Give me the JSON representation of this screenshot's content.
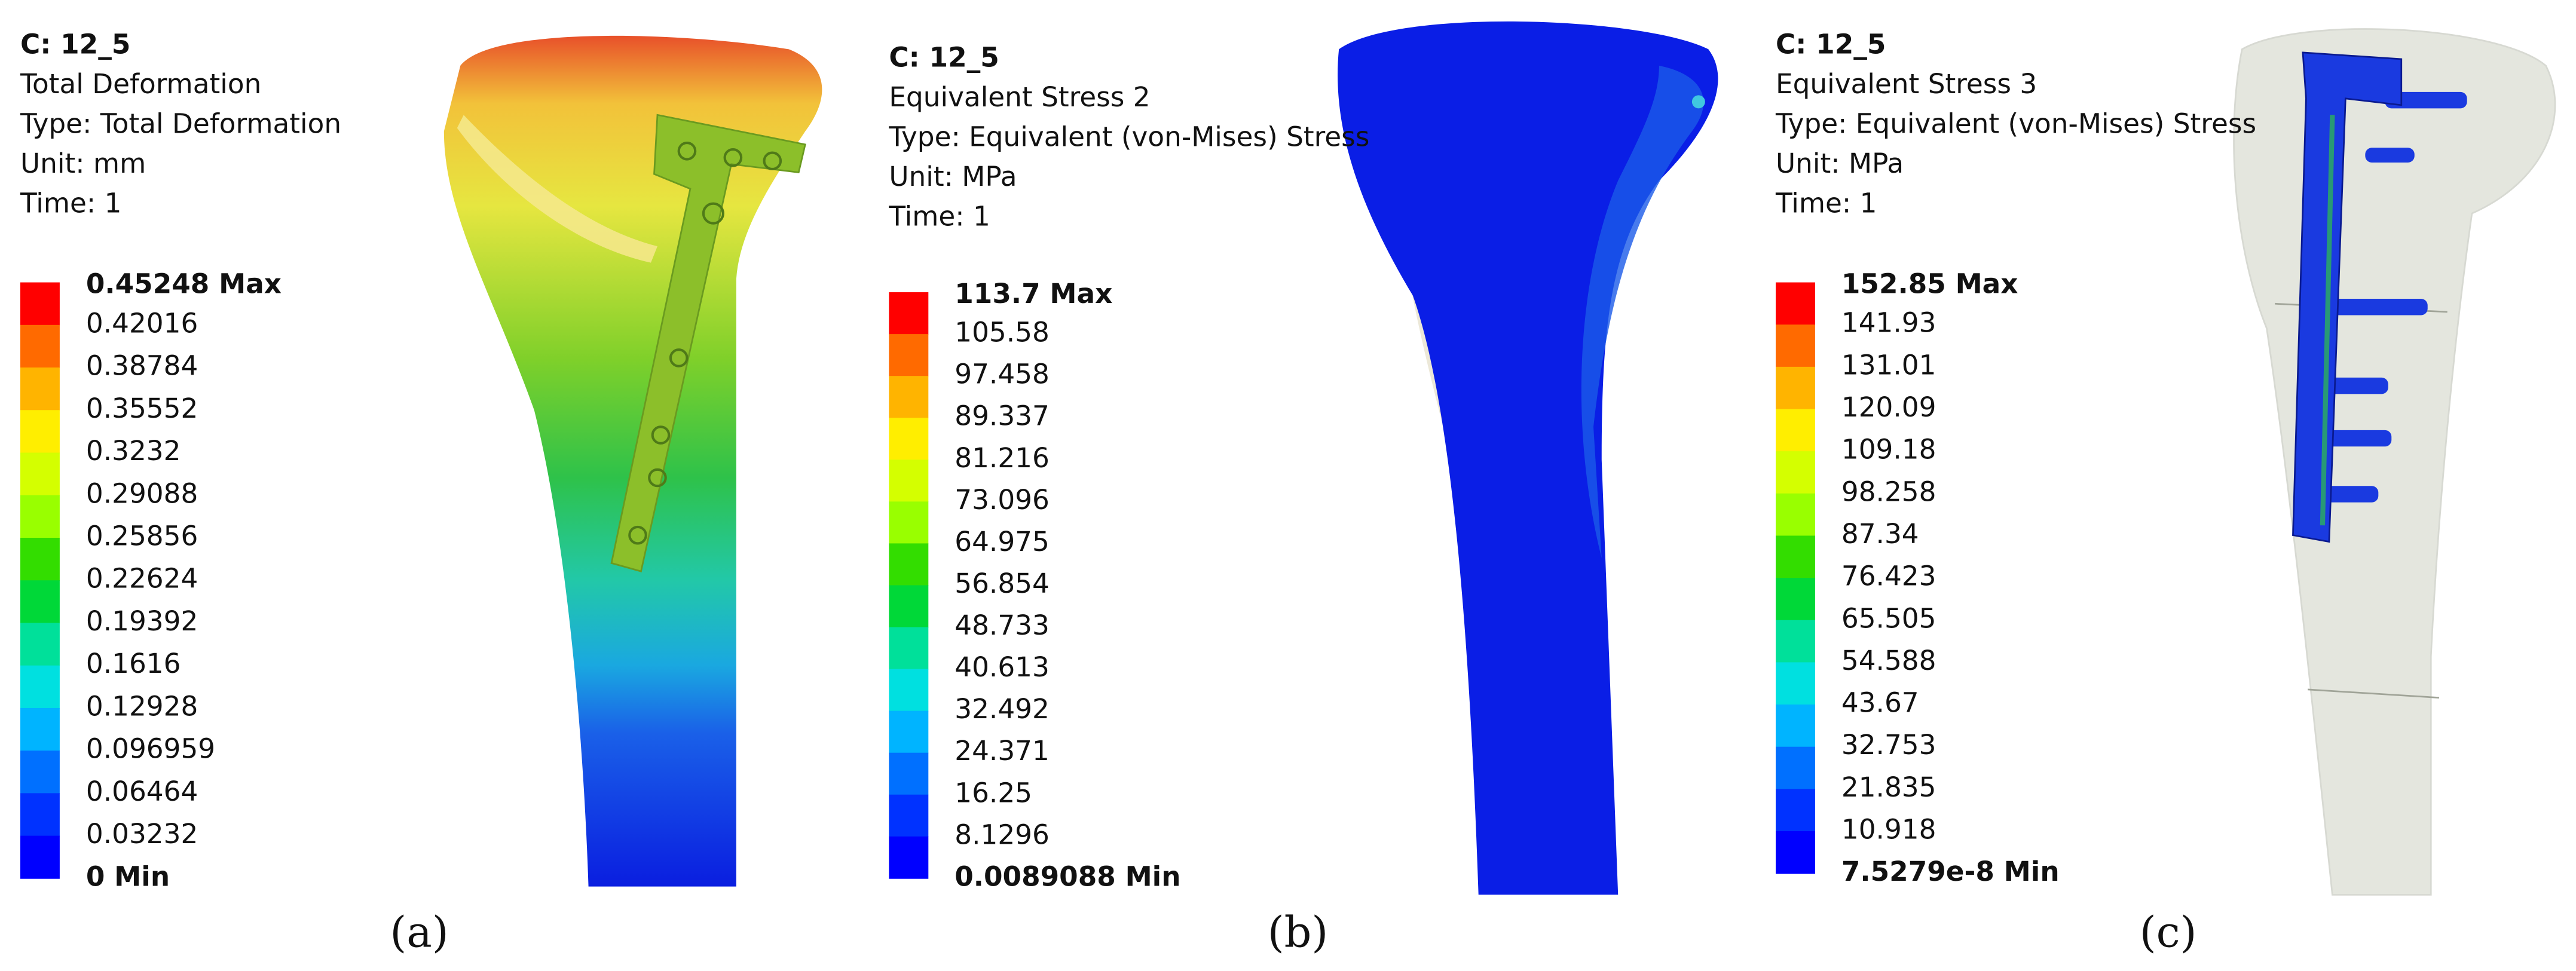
{
  "panels": [
    {
      "header": [
        "C: 12_5",
        "Total Deformation",
        "Type: Total Deformation",
        "Unit: mm",
        "Time: 1"
      ],
      "legend": [
        "0.45248 Max",
        "0.42016",
        "0.38784",
        "0.35552",
        "0.3232",
        "0.29088",
        "0.25856",
        "0.22624",
        "0.19392",
        "0.1616",
        "0.12928",
        "0.096959",
        "0.06464",
        "0.03232",
        "0 Min"
      ],
      "caption": "(a)"
    },
    {
      "header": [
        "C: 12_5",
        "Equivalent Stress 2",
        "Type: Equivalent (von-Mises) Stress",
        "Unit: MPa",
        "Time: 1"
      ],
      "legend": [
        "113.7 Max",
        "105.58",
        "97.458",
        "89.337",
        "81.216",
        "73.096",
        "64.975",
        "56.854",
        "48.733",
        "40.613",
        "32.492",
        "24.371",
        "16.25",
        "8.1296",
        "0.0089088 Min"
      ],
      "caption": "(b)"
    },
    {
      "header": [
        "C: 12_5",
        "Equivalent Stress 3",
        "Type: Equivalent (von-Mises) Stress",
        "Unit: MPa",
        "Time: 1"
      ],
      "legend": [
        "152.85 Max",
        "141.93",
        "131.01",
        "120.09",
        "109.18",
        "98.258",
        "87.34",
        "76.423",
        "65.505",
        "54.588",
        "43.67",
        "32.753",
        "21.835",
        "10.918",
        "7.5279e-8 Min"
      ],
      "caption": "(c)"
    }
  ]
}
